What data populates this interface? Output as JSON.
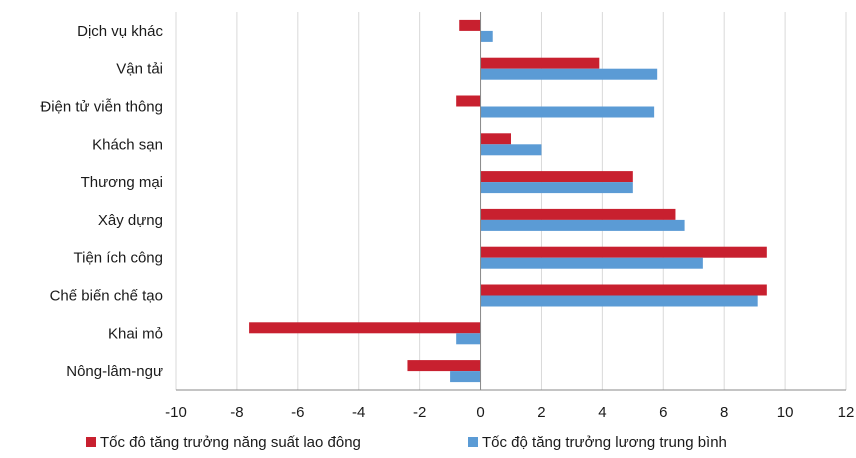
{
  "chart_data": {
    "type": "bar",
    "orientation": "horizontal",
    "categories": [
      "Dịch vụ khác",
      "Vận tải",
      "Điện tử viễn thông",
      "Khách sạn",
      "Thương mại",
      "Xây dựng",
      "Tiện ích công",
      "Chế biến chế tạo",
      "Khai mỏ",
      "Nông-lâm-ngư"
    ],
    "series": [
      {
        "name": "Tốc đô tăng trưởng năng suất lao đông",
        "color": "#c8202f",
        "values": [
          -0.7,
          3.9,
          -0.8,
          1.0,
          5.0,
          6.4,
          9.4,
          9.4,
          -7.6,
          -2.4
        ]
      },
      {
        "name": "Tốc độ tăng trưởng lương trung bình",
        "color": "#5b9bd5",
        "values": [
          0.4,
          5.8,
          5.7,
          2.0,
          5.0,
          6.7,
          7.3,
          9.1,
          -0.8,
          -1.0
        ]
      }
    ],
    "xlim": [
      -10,
      12
    ],
    "x_ticks": [
      -10,
      -8,
      -6,
      -4,
      -2,
      0,
      2,
      4,
      6,
      8,
      10,
      12
    ],
    "grid": "vertical",
    "legend": "bottom",
    "title": "",
    "xlabel": "",
    "ylabel": ""
  }
}
